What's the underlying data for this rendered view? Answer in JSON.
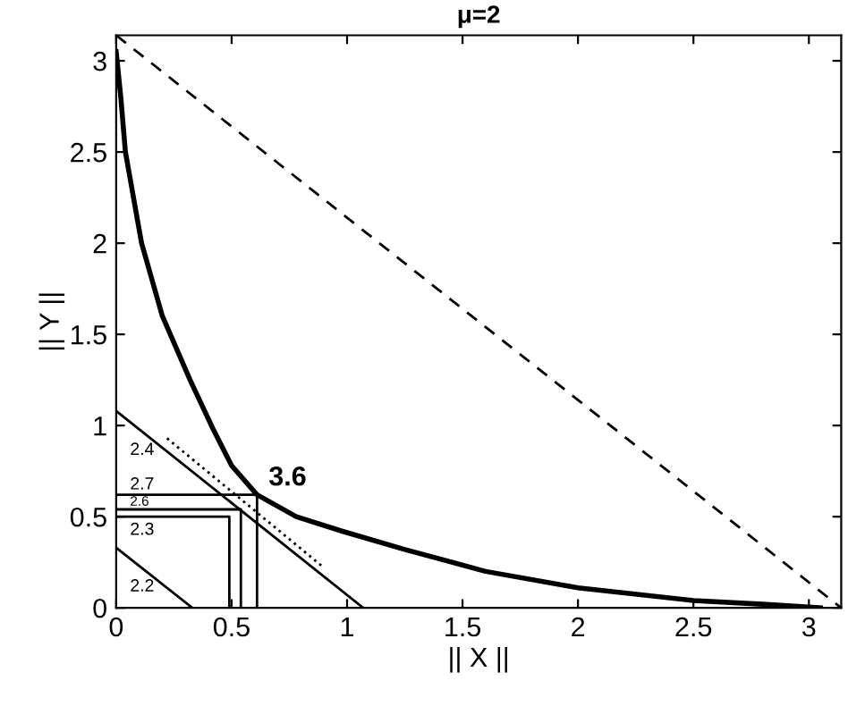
{
  "chart_data": {
    "type": "line",
    "title": "μ=2",
    "xlabel": "|| X ||",
    "ylabel": "|| Y ||",
    "xlim": [
      0,
      3.14
    ],
    "ylim": [
      0,
      3.14
    ],
    "xticks": [
      0,
      0.5,
      1,
      1.5,
      2,
      2.5,
      3
    ],
    "yticks": [
      0,
      0.5,
      1,
      1.5,
      2,
      2.5,
      3
    ],
    "grid": false,
    "series": [
      {
        "color": "#000000",
        "line_style": "solid",
        "x": [
          0,
          0.02,
          0.04,
          0.11,
          0.2,
          0.32,
          0.42,
          0.5,
          0.61,
          0.78,
          0.98,
          1.25,
          1.6,
          2.0,
          2.5,
          2.8,
          3.05
        ],
        "values": [
          3.05,
          2.8,
          2.5,
          2.0,
          1.6,
          1.25,
          0.98,
          0.78,
          0.62,
          0.5,
          0.42,
          0.32,
          0.2,
          0.11,
          0.04,
          0.02,
          0
        ]
      },
      {
        "color": "#000000",
        "line_style": "dashed",
        "x": [
          0,
          3.14
        ],
        "values": [
          3.14,
          0
        ]
      },
      {
        "color": "#000000",
        "line_style": "dotted",
        "x": [
          0.22,
          0.9
        ],
        "values": [
          0.93,
          0.22
        ]
      },
      {
        "color": "#000000",
        "line_style": "solid",
        "x": [
          0,
          0.33
        ],
        "values": [
          0.33,
          0
        ]
      },
      {
        "color": "#000000",
        "line_style": "solid",
        "x": [
          0,
          1.07
        ],
        "values": [
          1.08,
          0
        ]
      },
      {
        "color": "#000000",
        "line_style": "solid",
        "x": [
          0,
          0.61,
          0.61
        ],
        "values": [
          0.62,
          0.62,
          0
        ]
      },
      {
        "color": "#000000",
        "line_style": "solid",
        "x": [
          0,
          0.54,
          0.54
        ],
        "values": [
          0.54,
          0.54,
          0
        ]
      },
      {
        "color": "#000000",
        "line_style": "solid",
        "x": [
          0,
          0.49,
          0.49
        ],
        "values": [
          0.5,
          0.5,
          0
        ]
      }
    ],
    "annotations": [
      "2.2",
      "2.4",
      "2.7",
      "2.6",
      "2.3",
      "3.6"
    ]
  }
}
